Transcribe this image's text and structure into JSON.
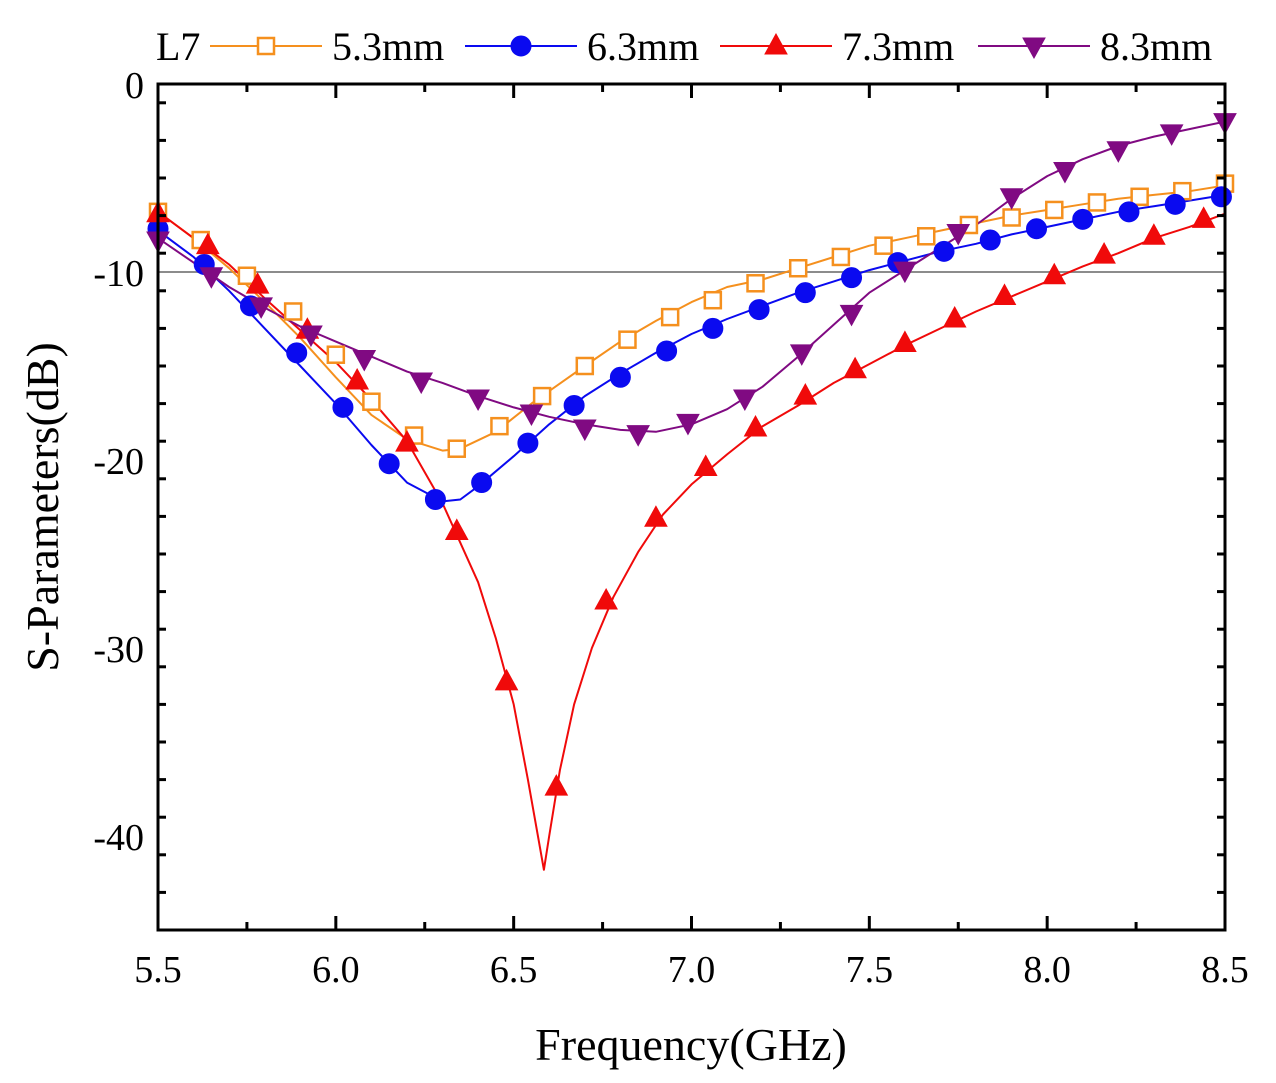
{
  "chart_data": {
    "type": "line",
    "title": "",
    "xlabel": "Frequency(GHz)",
    "ylabel": "S-Parameters(dB)",
    "xlim": [
      5.5,
      8.5
    ],
    "ylim": [
      -45,
      0
    ],
    "xticks": [
      5.5,
      6.0,
      6.5,
      7.0,
      7.5,
      8.0,
      8.5
    ],
    "xtick_labels": [
      "5.5",
      "6.0",
      "6.5",
      "7.0",
      "7.5",
      "8.0",
      "8.5"
    ],
    "yticks": [
      0,
      -10,
      -20,
      -30,
      -40
    ],
    "ytick_labels": [
      "0",
      "-10",
      "-20",
      "-30",
      "-40"
    ],
    "reference_line": {
      "y": -10,
      "color": "#8c8c8c"
    },
    "legend": {
      "title": "L7",
      "placement": "top"
    },
    "series": [
      {
        "name": "5.3mm",
        "color": "#f5901e",
        "marker": "open-square",
        "curve": [
          [
            5.5,
            -6.8
          ],
          [
            5.6,
            -8.2
          ],
          [
            5.7,
            -9.8
          ],
          [
            5.8,
            -11.6
          ],
          [
            5.9,
            -13.5
          ],
          [
            6.0,
            -15.6
          ],
          [
            6.1,
            -17.6
          ],
          [
            6.2,
            -18.9
          ],
          [
            6.3,
            -19.5
          ],
          [
            6.35,
            -19.4
          ],
          [
            6.45,
            -18.5
          ],
          [
            6.55,
            -17.0
          ],
          [
            6.7,
            -15.0
          ],
          [
            6.8,
            -13.7
          ],
          [
            6.9,
            -12.6
          ],
          [
            7.0,
            -11.6
          ],
          [
            7.1,
            -10.8
          ],
          [
            7.2,
            -10.4
          ],
          [
            7.3,
            -9.8
          ],
          [
            7.4,
            -9.2
          ],
          [
            7.5,
            -8.6
          ],
          [
            7.6,
            -8.2
          ],
          [
            7.7,
            -7.8
          ],
          [
            7.8,
            -7.4
          ],
          [
            7.9,
            -7.0
          ],
          [
            8.0,
            -6.7
          ],
          [
            8.1,
            -6.4
          ],
          [
            8.2,
            -6.1
          ],
          [
            8.3,
            -5.9
          ],
          [
            8.4,
            -5.7
          ],
          [
            8.5,
            -5.4
          ]
        ],
        "markers": [
          [
            5.5,
            -6.8
          ],
          [
            5.62,
            -8.3
          ],
          [
            5.75,
            -10.2
          ],
          [
            5.88,
            -12.1
          ],
          [
            6.0,
            -14.4
          ],
          [
            6.1,
            -16.9
          ],
          [
            6.22,
            -18.7
          ],
          [
            6.34,
            -19.4
          ],
          [
            6.46,
            -18.2
          ],
          [
            6.58,
            -16.6
          ],
          [
            6.7,
            -15.0
          ],
          [
            6.82,
            -13.6
          ],
          [
            6.94,
            -12.4
          ],
          [
            7.06,
            -11.5
          ],
          [
            7.18,
            -10.6
          ],
          [
            7.3,
            -9.8
          ],
          [
            7.42,
            -9.2
          ],
          [
            7.54,
            -8.6
          ],
          [
            7.66,
            -8.1
          ],
          [
            7.78,
            -7.5
          ],
          [
            7.9,
            -7.1
          ],
          [
            8.02,
            -6.7
          ],
          [
            8.14,
            -6.3
          ],
          [
            8.26,
            -6.0
          ],
          [
            8.38,
            -5.7
          ],
          [
            8.5,
            -5.3
          ]
        ]
      },
      {
        "name": "6.3mm",
        "color": "#0a0af0",
        "marker": "filled-circle",
        "curve": [
          [
            5.5,
            -7.8
          ],
          [
            5.6,
            -9.2
          ],
          [
            5.7,
            -11.0
          ],
          [
            5.8,
            -13.0
          ],
          [
            5.9,
            -15.0
          ],
          [
            6.0,
            -17.0
          ],
          [
            6.1,
            -19.2
          ],
          [
            6.2,
            -21.2
          ],
          [
            6.3,
            -22.2
          ],
          [
            6.35,
            -22.1
          ],
          [
            6.4,
            -21.4
          ],
          [
            6.5,
            -19.8
          ],
          [
            6.6,
            -18.1
          ],
          [
            6.7,
            -16.6
          ],
          [
            6.8,
            -15.4
          ],
          [
            6.9,
            -14.3
          ],
          [
            7.0,
            -13.3
          ],
          [
            7.1,
            -12.5
          ],
          [
            7.2,
            -11.8
          ],
          [
            7.3,
            -11.1
          ],
          [
            7.4,
            -10.5
          ],
          [
            7.5,
            -9.9
          ],
          [
            7.6,
            -9.4
          ],
          [
            7.7,
            -8.9
          ],
          [
            7.8,
            -8.5
          ],
          [
            7.9,
            -8.0
          ],
          [
            8.0,
            -7.6
          ],
          [
            8.1,
            -7.2
          ],
          [
            8.2,
            -6.8
          ],
          [
            8.3,
            -6.5
          ],
          [
            8.4,
            -6.2
          ],
          [
            8.5,
            -5.9
          ]
        ],
        "markers": [
          [
            5.5,
            -7.7
          ],
          [
            5.63,
            -9.6
          ],
          [
            5.76,
            -11.8
          ],
          [
            5.89,
            -14.3
          ],
          [
            6.02,
            -17.2
          ],
          [
            6.15,
            -20.2
          ],
          [
            6.28,
            -22.1
          ],
          [
            6.41,
            -21.2
          ],
          [
            6.54,
            -19.1
          ],
          [
            6.67,
            -17.1
          ],
          [
            6.8,
            -15.6
          ],
          [
            6.93,
            -14.2
          ],
          [
            7.06,
            -13.0
          ],
          [
            7.19,
            -12.0
          ],
          [
            7.32,
            -11.1
          ],
          [
            7.45,
            -10.3
          ],
          [
            7.58,
            -9.5
          ],
          [
            7.71,
            -8.9
          ],
          [
            7.84,
            -8.3
          ],
          [
            7.97,
            -7.7
          ],
          [
            8.1,
            -7.2
          ],
          [
            8.23,
            -6.8
          ],
          [
            8.36,
            -6.4
          ],
          [
            8.49,
            -6.0
          ]
        ]
      },
      {
        "name": "7.3mm",
        "color": "#f00a0a",
        "marker": "filled-triangle-up",
        "curve": [
          [
            5.5,
            -6.8
          ],
          [
            5.6,
            -8.2
          ],
          [
            5.7,
            -9.6
          ],
          [
            5.8,
            -11.4
          ],
          [
            5.9,
            -13.1
          ],
          [
            6.0,
            -14.8
          ],
          [
            6.1,
            -16.8
          ],
          [
            6.2,
            -19.0
          ],
          [
            6.3,
            -22.3
          ],
          [
            6.4,
            -26.5
          ],
          [
            6.45,
            -29.5
          ],
          [
            6.5,
            -33.0
          ],
          [
            6.54,
            -37.0
          ],
          [
            6.57,
            -40.2
          ],
          [
            6.585,
            -41.8
          ],
          [
            6.6,
            -40.0
          ],
          [
            6.63,
            -36.5
          ],
          [
            6.67,
            -33.0
          ],
          [
            6.72,
            -30.0
          ],
          [
            6.78,
            -27.3
          ],
          [
            6.85,
            -24.9
          ],
          [
            6.92,
            -22.9
          ],
          [
            7.0,
            -21.3
          ],
          [
            7.1,
            -19.7
          ],
          [
            7.2,
            -18.2
          ],
          [
            7.3,
            -17.1
          ],
          [
            7.4,
            -15.9
          ],
          [
            7.5,
            -14.9
          ],
          [
            7.6,
            -13.9
          ],
          [
            7.7,
            -13.0
          ],
          [
            7.8,
            -12.1
          ],
          [
            7.9,
            -11.3
          ],
          [
            8.0,
            -10.5
          ],
          [
            8.1,
            -9.7
          ],
          [
            8.2,
            -9.0
          ],
          [
            8.3,
            -8.2
          ],
          [
            8.4,
            -7.6
          ],
          [
            8.5,
            -6.9
          ]
        ],
        "markers": [
          [
            5.5,
            -6.9
          ],
          [
            5.64,
            -8.6
          ],
          [
            5.78,
            -10.7
          ],
          [
            5.92,
            -13.1
          ],
          [
            6.06,
            -15.8
          ],
          [
            6.2,
            -19.1
          ],
          [
            6.34,
            -23.8
          ],
          [
            6.48,
            -31.8
          ],
          [
            6.62,
            -37.4
          ],
          [
            6.76,
            -27.5
          ],
          [
            6.9,
            -23.1
          ],
          [
            7.04,
            -20.4
          ],
          [
            7.18,
            -18.3
          ],
          [
            7.32,
            -16.6
          ],
          [
            7.46,
            -15.2
          ],
          [
            7.6,
            -13.8
          ],
          [
            7.74,
            -12.5
          ],
          [
            7.88,
            -11.3
          ],
          [
            8.02,
            -10.2
          ],
          [
            8.16,
            -9.1
          ],
          [
            8.3,
            -8.1
          ],
          [
            8.44,
            -7.2
          ]
        ]
      },
      {
        "name": "8.3mm",
        "color": "#800a82",
        "marker": "filled-triangle-down",
        "curve": [
          [
            5.5,
            -8.2
          ],
          [
            5.6,
            -9.5
          ],
          [
            5.7,
            -10.8
          ],
          [
            5.8,
            -11.9
          ],
          [
            5.9,
            -12.9
          ],
          [
            6.0,
            -13.7
          ],
          [
            6.1,
            -14.5
          ],
          [
            6.2,
            -15.3
          ],
          [
            6.3,
            -15.9
          ],
          [
            6.4,
            -16.6
          ],
          [
            6.5,
            -17.2
          ],
          [
            6.6,
            -17.7
          ],
          [
            6.7,
            -18.1
          ],
          [
            6.8,
            -18.4
          ],
          [
            6.9,
            -18.5
          ],
          [
            7.0,
            -18.1
          ],
          [
            7.1,
            -17.3
          ],
          [
            7.2,
            -16.1
          ],
          [
            7.3,
            -14.5
          ],
          [
            7.4,
            -12.8
          ],
          [
            7.5,
            -11.1
          ],
          [
            7.6,
            -9.9
          ],
          [
            7.7,
            -8.7
          ],
          [
            7.8,
            -7.5
          ],
          [
            7.9,
            -6.1
          ],
          [
            8.0,
            -4.9
          ],
          [
            8.1,
            -4.0
          ],
          [
            8.2,
            -3.3
          ],
          [
            8.3,
            -2.8
          ],
          [
            8.4,
            -2.4
          ],
          [
            8.5,
            -2.0
          ]
        ],
        "markers": [
          [
            5.5,
            -8.3
          ],
          [
            5.65,
            -10.2
          ],
          [
            5.79,
            -11.8
          ],
          [
            5.93,
            -13.3
          ],
          [
            6.08,
            -14.6
          ],
          [
            6.24,
            -15.8
          ],
          [
            6.4,
            -16.7
          ],
          [
            6.55,
            -17.5
          ],
          [
            6.7,
            -18.3
          ],
          [
            6.85,
            -18.6
          ],
          [
            6.99,
            -18.0
          ],
          [
            7.15,
            -16.7
          ],
          [
            7.31,
            -14.3
          ],
          [
            7.45,
            -12.2
          ],
          [
            7.6,
            -9.9
          ],
          [
            7.75,
            -7.9
          ],
          [
            7.9,
            -6.0
          ],
          [
            8.05,
            -4.6
          ],
          [
            8.2,
            -3.5
          ],
          [
            8.35,
            -2.6
          ],
          [
            8.5,
            -2.0
          ]
        ]
      }
    ]
  }
}
